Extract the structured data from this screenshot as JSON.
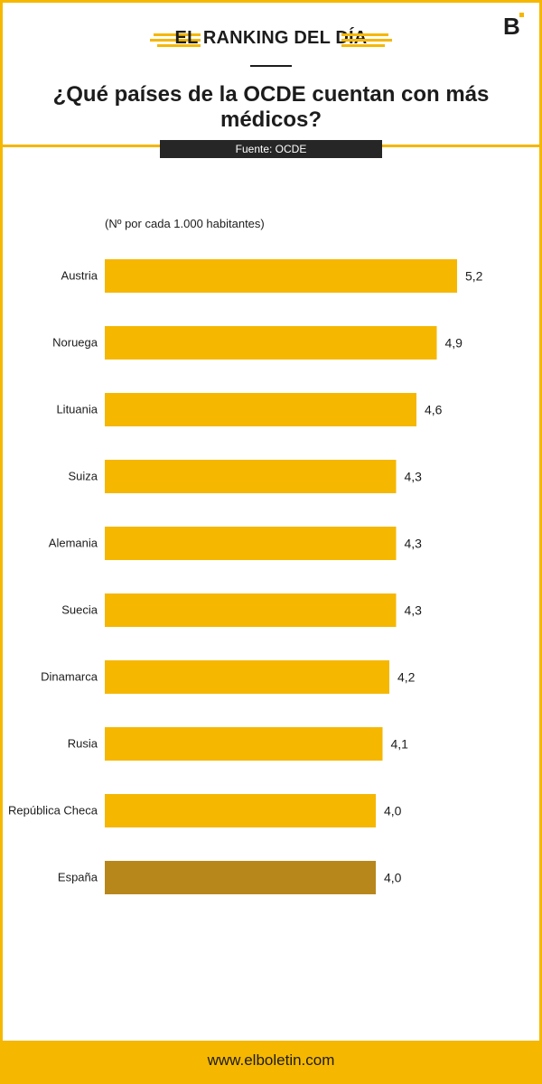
{
  "header": {
    "kicker": "EL RANKING DEL DÍA",
    "title": "¿Qué países de la OCDE cuentan con más médicos?",
    "source": "Fuente: OCDE",
    "logo_icon": "boletin-b-logo-icon"
  },
  "colors": {
    "accent": "#f5b700",
    "bar": "#f5b700",
    "highlight_bar": "#b8871b",
    "dark": "#262626"
  },
  "chart_data": {
    "type": "bar",
    "orientation": "horizontal",
    "subtitle": "(Nº por cada 1.000 habitantes)",
    "categories": [
      "Austria",
      "Noruega",
      "Lituania",
      "Suiza",
      "Alemania",
      "Suecia",
      "Dinamarca",
      "Rusia",
      "República Checa",
      "España"
    ],
    "values": [
      5.2,
      4.9,
      4.6,
      4.3,
      4.3,
      4.3,
      4.2,
      4.1,
      4.0,
      4.0
    ],
    "value_labels": [
      "5,2",
      "4,9",
      "4,6",
      "4,3",
      "4,3",
      "4,3",
      "4,2",
      "4,1",
      "4,0",
      "4,0"
    ],
    "highlight": "España",
    "grid": false,
    "legend": "none"
  },
  "footer": {
    "url": "www.elboletin.com"
  }
}
